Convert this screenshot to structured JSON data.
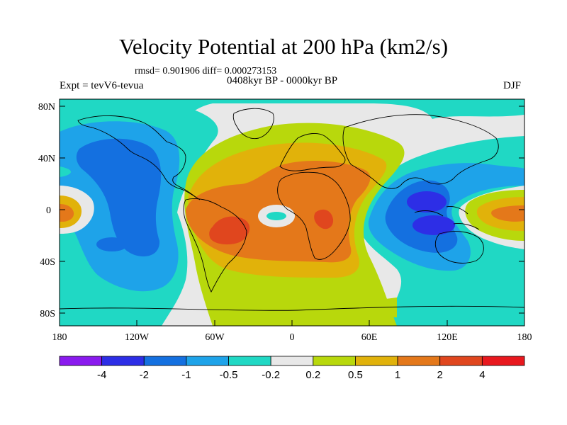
{
  "title": "Velocity Potential at 200 hPa (km2/s)",
  "stats": "rmsd= 0.901906 diff= 0.000273153",
  "period": "0408kyr BP - 0000kyr BP",
  "expt": "Expt = tevV6-tevua",
  "season": "DJF",
  "lat_ticks": [
    "80N",
    "40N",
    "0",
    "40S",
    "80S"
  ],
  "lon_ticks": [
    "180",
    "120W",
    "60W",
    "0",
    "60E",
    "120E",
    "180"
  ],
  "colorbar": {
    "colors": [
      "#8a1aee",
      "#2d2ee6",
      "#1470e0",
      "#1ea3e9",
      "#20d8c4",
      "#e8e8e8",
      "#b8d80c",
      "#e1b20a",
      "#e4781a",
      "#e0461e",
      "#e8181e"
    ],
    "labels": [
      "-4",
      "-2",
      "-1",
      "-0.5",
      "-0.2",
      "0.2",
      "0.5",
      "1",
      "2",
      "4"
    ]
  },
  "colors": {
    "land_outline": "#000000",
    "frame": "#000000"
  }
}
